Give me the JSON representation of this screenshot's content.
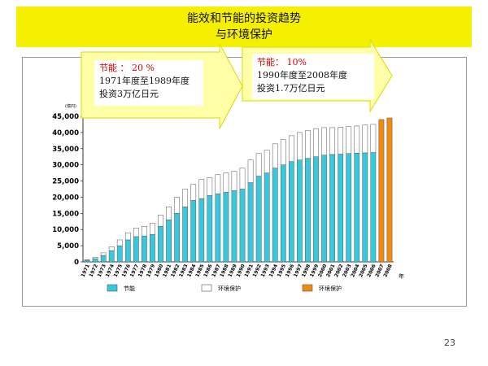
{
  "slide": {
    "title_line1": "能效和节能的投资趋势",
    "title_line2": "与环境保护",
    "page_number": "23"
  },
  "callouts": [
    {
      "line1": "节能 ： 20 %",
      "line2": "1971年度至1989年度",
      "line3": "投资3万亿日元"
    },
    {
      "line1": "节能： 10%",
      "line2": "1990年度至2008年度",
      "line3": "投资1.7万亿日元"
    }
  ],
  "colors": {
    "title_bg": "#f4f000",
    "callout_bg": "#ffffa8",
    "callout_border": "#d9d900",
    "energy_saving": "#38c8dc",
    "environment_white": "#ffffff",
    "environment_orange": "#f08a10"
  },
  "chart_data": {
    "type": "bar",
    "stacked": true,
    "y_unit": "(億円)",
    "x_unit": "年",
    "ylim": [
      0,
      45000
    ],
    "yticks": [
      0,
      5000,
      10000,
      15000,
      20000,
      25000,
      30000,
      35000,
      40000,
      45000
    ],
    "ytick_labels": [
      "0",
      "5,000",
      "10,000",
      "15,000",
      "20,000",
      "25,000",
      "30,000",
      "35,000",
      "40,000",
      "45,000"
    ],
    "categories": [
      "1971",
      "1972",
      "1973",
      "1974",
      "1975",
      "1976",
      "1977",
      "1978",
      "1979",
      "1980",
      "1981",
      "1982",
      "1983",
      "1984",
      "1985",
      "1986",
      "1987",
      "1988",
      "1989",
      "1990",
      "1991",
      "1992",
      "1993",
      "1994",
      "1995",
      "1996",
      "1997",
      "1998",
      "1999",
      "2000",
      "2001",
      "2002",
      "2003",
      "2004",
      "2005",
      "2006",
      "2007",
      "2008"
    ],
    "series": [
      {
        "name": "节能",
        "color": "#38c8dc",
        "values": [
          500,
          1000,
          2000,
          3500,
          5000,
          6800,
          7800,
          8000,
          8500,
          11000,
          13000,
          15000,
          17000,
          19000,
          19500,
          20500,
          21000,
          21500,
          22000,
          22500,
          24500,
          26500,
          27500,
          29000,
          30000,
          31000,
          31500,
          32000,
          32500,
          33000,
          33200,
          33300,
          33500,
          33600,
          33700,
          33800,
          0,
          0
        ]
      },
      {
        "name": "环境保护",
        "color": "#ffffff",
        "values": [
          200,
          400,
          800,
          1200,
          1800,
          2200,
          2700,
          3000,
          3500,
          3500,
          4000,
          5000,
          5500,
          5000,
          6000,
          5500,
          6000,
          6000,
          6000,
          6500,
          7000,
          7000,
          7000,
          7500,
          7800,
          8000,
          8500,
          8600,
          8700,
          8500,
          8300,
          8300,
          8300,
          8400,
          8600,
          8700,
          0,
          0
        ]
      },
      {
        "name": "环境保护",
        "color": "#f08a10",
        "values": [
          0,
          0,
          0,
          0,
          0,
          0,
          0,
          0,
          0,
          0,
          0,
          0,
          0,
          0,
          0,
          0,
          0,
          0,
          0,
          0,
          0,
          0,
          0,
          0,
          0,
          0,
          0,
          0,
          0,
          0,
          0,
          0,
          0,
          0,
          0,
          0,
          44000,
          44500
        ]
      }
    ]
  }
}
